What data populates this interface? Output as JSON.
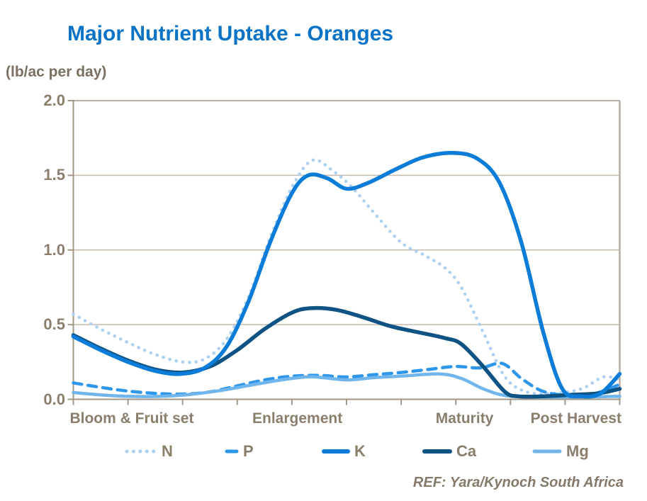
{
  "header": {
    "title": "Major Nutrient Uptake - Oranges",
    "y_axis_unit": "(lb/ac per day)"
  },
  "footer": {
    "ref": "REF: Yara/Kynoch South Africa"
  },
  "colors": {
    "title": "#0a73c5",
    "axis": "#a29786",
    "grid": "#c4baae",
    "border": "#b7ada1",
    "label_text": "#8b7e6d",
    "ref_text": "#86796a"
  },
  "chart_data": {
    "type": "line",
    "title": "Major Nutrient Uptake - Oranges",
    "ylabel": "(lb/ac per day)",
    "xlabel": "",
    "xlim": [
      0,
      10
    ],
    "ylim": [
      0,
      2.0
    ],
    "grid": true,
    "legend_position": "bottom",
    "yticks": [
      {
        "value": 0.0,
        "label": "0.0"
      },
      {
        "value": 0.5,
        "label": "0.5"
      },
      {
        "value": 1.0,
        "label": "1.0"
      },
      {
        "value": 1.5,
        "label": "1.5"
      },
      {
        "value": 2.0,
        "label": "2.0"
      }
    ],
    "xticks": [
      0,
      1,
      2,
      3,
      4,
      5,
      6,
      7,
      8,
      9,
      10
    ],
    "x_categories": [
      {
        "label": "Bloom & Fruit set",
        "x": 1.07
      },
      {
        "label": "Enlargement",
        "x": 4.1
      },
      {
        "label": "Maturity",
        "x": 7.16
      },
      {
        "label": "Post Harvest",
        "x": 9.2
      }
    ],
    "series": [
      {
        "name": "N",
        "label": "N",
        "color": "#acd0f2",
        "line_style": "dotted",
        "stroke_width": 4.5,
        "points": [
          [
            0,
            0.57
          ],
          [
            0.5,
            0.47
          ],
          [
            1,
            0.38
          ],
          [
            1.5,
            0.3
          ],
          [
            2,
            0.25
          ],
          [
            2.4,
            0.27
          ],
          [
            2.8,
            0.4
          ],
          [
            3.2,
            0.68
          ],
          [
            3.6,
            1.08
          ],
          [
            4.0,
            1.42
          ],
          [
            4.37,
            1.6
          ],
          [
            4.75,
            1.53
          ],
          [
            5.1,
            1.42
          ],
          [
            5.5,
            1.25
          ],
          [
            6.0,
            1.05
          ],
          [
            6.45,
            0.96
          ],
          [
            6.8,
            0.88
          ],
          [
            7.1,
            0.75
          ],
          [
            7.5,
            0.45
          ],
          [
            7.9,
            0.15
          ],
          [
            8.3,
            0.05
          ],
          [
            8.8,
            0.04
          ],
          [
            9.3,
            0.07
          ],
          [
            9.7,
            0.15
          ],
          [
            10,
            0.13
          ]
        ]
      },
      {
        "name": "P",
        "label": "P",
        "color": "#2e97ea",
        "line_style": "dashed",
        "stroke_width": 4.5,
        "points": [
          [
            0,
            0.11
          ],
          [
            0.5,
            0.08
          ],
          [
            1,
            0.055
          ],
          [
            1.5,
            0.04
          ],
          [
            2,
            0.035
          ],
          [
            2.5,
            0.05
          ],
          [
            3.0,
            0.09
          ],
          [
            3.5,
            0.13
          ],
          [
            4.0,
            0.155
          ],
          [
            4.5,
            0.16
          ],
          [
            5.0,
            0.15
          ],
          [
            5.5,
            0.165
          ],
          [
            6.0,
            0.18
          ],
          [
            6.5,
            0.2
          ],
          [
            7.0,
            0.22
          ],
          [
            7.45,
            0.21
          ],
          [
            7.85,
            0.24
          ],
          [
            8.2,
            0.14
          ],
          [
            8.55,
            0.06
          ],
          [
            8.9,
            0.03
          ],
          [
            9.3,
            0.02
          ],
          [
            9.65,
            0.05
          ],
          [
            10,
            0.1
          ]
        ]
      },
      {
        "name": "K",
        "label": "K",
        "color": "#0b7cd8",
        "line_style": "solid",
        "stroke_width": 5.5,
        "points": [
          [
            0,
            0.42
          ],
          [
            0.5,
            0.33
          ],
          [
            1,
            0.25
          ],
          [
            1.5,
            0.19
          ],
          [
            1.95,
            0.17
          ],
          [
            2.4,
            0.21
          ],
          [
            2.8,
            0.35
          ],
          [
            3.2,
            0.65
          ],
          [
            3.6,
            1.05
          ],
          [
            4.0,
            1.38
          ],
          [
            4.3,
            1.5
          ],
          [
            4.65,
            1.48
          ],
          [
            5.0,
            1.41
          ],
          [
            5.4,
            1.45
          ],
          [
            5.9,
            1.54
          ],
          [
            6.4,
            1.62
          ],
          [
            6.95,
            1.65
          ],
          [
            7.4,
            1.61
          ],
          [
            7.8,
            1.45
          ],
          [
            8.2,
            1.05
          ],
          [
            8.6,
            0.45
          ],
          [
            8.95,
            0.07
          ],
          [
            9.3,
            0.02
          ],
          [
            9.65,
            0.04
          ],
          [
            10,
            0.17
          ]
        ]
      },
      {
        "name": "Ca",
        "label": "Ca",
        "color": "#0e5384",
        "line_style": "solid",
        "stroke_width": 5.5,
        "points": [
          [
            0,
            0.43
          ],
          [
            0.5,
            0.34
          ],
          [
            1,
            0.26
          ],
          [
            1.5,
            0.2
          ],
          [
            2,
            0.18
          ],
          [
            2.5,
            0.22
          ],
          [
            3.0,
            0.33
          ],
          [
            3.5,
            0.47
          ],
          [
            4.0,
            0.58
          ],
          [
            4.35,
            0.61
          ],
          [
            4.8,
            0.6
          ],
          [
            5.3,
            0.55
          ],
          [
            5.8,
            0.49
          ],
          [
            6.3,
            0.45
          ],
          [
            6.8,
            0.41
          ],
          [
            7.1,
            0.37
          ],
          [
            7.5,
            0.22
          ],
          [
            7.9,
            0.05
          ],
          [
            8.15,
            0.02
          ],
          [
            8.6,
            0.02
          ],
          [
            9.1,
            0.03
          ],
          [
            9.6,
            0.04
          ],
          [
            10,
            0.07
          ]
        ]
      },
      {
        "name": "Mg",
        "label": "Mg",
        "color": "#70b6ec",
        "line_style": "solid",
        "stroke_width": 4.5,
        "points": [
          [
            0,
            0.045
          ],
          [
            0.5,
            0.03
          ],
          [
            1,
            0.02
          ],
          [
            1.6,
            0.02
          ],
          [
            2.2,
            0.035
          ],
          [
            2.8,
            0.065
          ],
          [
            3.4,
            0.105
          ],
          [
            4.0,
            0.14
          ],
          [
            4.4,
            0.15
          ],
          [
            5.0,
            0.13
          ],
          [
            5.5,
            0.145
          ],
          [
            6.0,
            0.155
          ],
          [
            6.7,
            0.17
          ],
          [
            7.1,
            0.14
          ],
          [
            7.5,
            0.07
          ],
          [
            7.9,
            0.025
          ],
          [
            8.4,
            0.015
          ],
          [
            9.2,
            0.015
          ],
          [
            10,
            0.02
          ]
        ]
      }
    ]
  }
}
